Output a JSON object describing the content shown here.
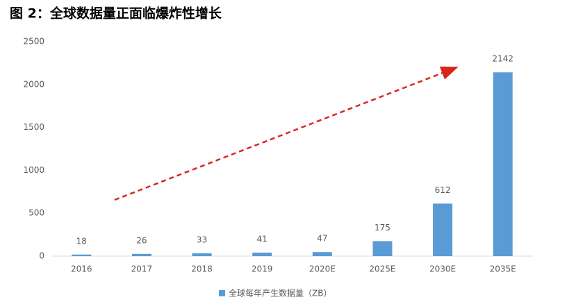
{
  "chart_data": {
    "type": "bar",
    "title": "图 2：全球数据量正面临爆炸性增长",
    "categories": [
      "2016",
      "2017",
      "2018",
      "2019",
      "2020E",
      "2025E",
      "2030E",
      "2035E"
    ],
    "series": [
      {
        "name": "全球每年产生数据量（ZB）",
        "color": "#5b9bd5",
        "values": [
          18,
          26,
          33,
          41,
          47,
          175,
          612,
          2142
        ]
      }
    ],
    "ylim": [
      0,
      2500
    ],
    "yticks": [
      0,
      500,
      1000,
      1500,
      2000,
      2500
    ],
    "grid": false
  }
}
